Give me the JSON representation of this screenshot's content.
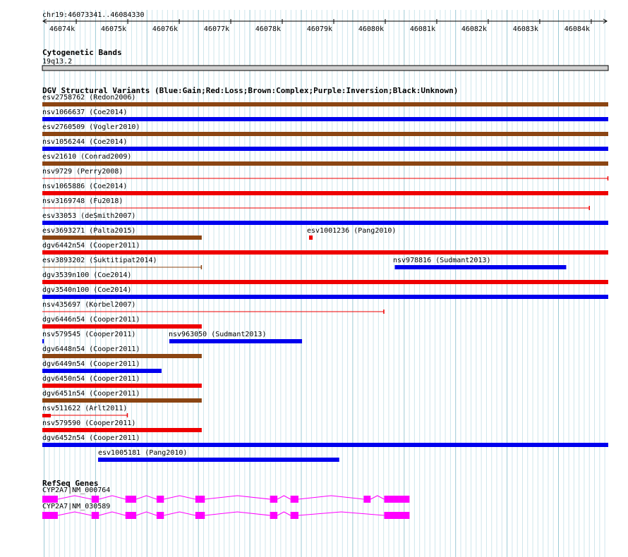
{
  "locus": "chr19:46073341..46084330",
  "ruler": {
    "start": 46073341,
    "end": 46084330,
    "ticks": [
      "46074k",
      "46075k",
      "46076k",
      "46077k",
      "46078k",
      "46079k",
      "46080k",
      "46081k",
      "46082k",
      "46083k",
      "46084k"
    ]
  },
  "tracks": {
    "cytoband": {
      "title": "Cytogenetic Bands",
      "band": "19q13.2"
    },
    "dgv": {
      "title": "DGV Structural Variants (Blue:Gain;Red:Loss;Brown:Complex;Purple:Inversion;Black:Unknown)",
      "colors": {
        "gain": "#0000ee",
        "loss": "#ee0000",
        "complex": "#8b4513"
      },
      "features": [
        {
          "label": "esv2758762 (Redon2006)",
          "type": "complex",
          "start": 46073341,
          "end": 46084330
        },
        {
          "label": "nsv1066637 (Coe2014)",
          "type": "gain",
          "start": 46073341,
          "end": 46084330
        },
        {
          "label": "esv2760509 (Vogler2010)",
          "type": "complex",
          "start": 46073341,
          "end": 46084330
        },
        {
          "label": "nsv1056244 (Coe2014)",
          "type": "gain",
          "start": 46073341,
          "end": 46084330
        },
        {
          "label": "esv21610 (Conrad2009)",
          "type": "complex",
          "start": 46073341,
          "end": 46084330
        },
        {
          "label": "nsv9729 (Perry2008)",
          "type": "loss",
          "start": 46073341,
          "end": 46084330,
          "style": "line"
        },
        {
          "label": "nsv1065886 (Coe2014)",
          "type": "loss",
          "start": 46073341,
          "end": 46084330
        },
        {
          "label": "nsv3169748 (Fu2018)",
          "type": "loss",
          "start": 46073341,
          "end": 46083970,
          "style": "line"
        },
        {
          "label": "esv33053 (deSmith2007)",
          "type": "gain",
          "start": 46073341,
          "end": 46084330
        },
        {
          "label": "esv3693271 (Palta2015)",
          "type": "complex",
          "start": 46073341,
          "end": 46076436
        },
        {
          "label": "esv1001236 (Pang2010)",
          "type": "loss",
          "start": 46078520,
          "end": 46078590
        },
        {
          "label": "dgv6442n54 (Cooper2011)",
          "type": "loss",
          "start": 46073341,
          "end": 46084330
        },
        {
          "label": "esv3893202 (Suktitipat2014)",
          "type": "complex",
          "start": 46073341,
          "end": 46076436,
          "style": "line"
        },
        {
          "label": "nsv978816 (Sudmant2013)",
          "type": "gain",
          "start": 46080185,
          "end": 46083514
        },
        {
          "label": "dgv3539n100 (Coe2014)",
          "type": "loss",
          "start": 46073341,
          "end": 46084330
        },
        {
          "label": "dgv3540n100 (Coe2014)",
          "type": "gain",
          "start": 46073341,
          "end": 46084330
        },
        {
          "label": "nsv435697 (Korbel2007)",
          "type": "loss",
          "start": 46073341,
          "end": 46079979,
          "style": "line"
        },
        {
          "label": "dgv6446n54 (Cooper2011)",
          "type": "loss",
          "start": 46073341,
          "end": 46076436
        },
        {
          "label": "nsv579545 (Cooper2011)",
          "type": "gain",
          "start": 46073341,
          "end": 46073370
        },
        {
          "label": "nsv963050 (Sudmant2013)",
          "type": "gain",
          "start": 46075807,
          "end": 46078384
        },
        {
          "label": "dgv6448n54 (Cooper2011)",
          "type": "complex",
          "start": 46073341,
          "end": 46076436
        },
        {
          "label": "dgv6449n54 (Cooper2011)",
          "type": "gain",
          "start": 46073341,
          "end": 46075656
        },
        {
          "label": "dgv6450n54 (Cooper2011)",
          "type": "loss",
          "start": 46073341,
          "end": 46076436
        },
        {
          "label": "dgv6451n54 (Cooper2011)",
          "type": "complex",
          "start": 46073341,
          "end": 46076436
        },
        {
          "label": "nsv511622 (Arlt2011)",
          "type": "loss",
          "start": 46073341,
          "end": 46074999,
          "style": "line"
        },
        {
          "label": "nsv579590 (Cooper2011)",
          "type": "loss",
          "start": 46073341,
          "end": 46076436
        },
        {
          "label": "dgv6452n54 (Cooper2011)",
          "type": "gain",
          "start": 46073341,
          "end": 46084330
        },
        {
          "label": "esv1005181 (Pang2010)",
          "type": "gain",
          "start": 46074423,
          "end": 46079106
        }
      ]
    },
    "refseq": {
      "title": "RefSeq Genes",
      "color": "#ff00ff",
      "genes": [
        {
          "label": "CYP2A7|NM_000764",
          "exons": [
            [
              46073341,
              46073641
            ],
            [
              46074296,
              46074441
            ],
            [
              46074954,
              46075164
            ],
            [
              46075559,
              46075702
            ],
            [
              46076312,
              46076496
            ],
            [
              46077761,
              46077906
            ],
            [
              46078159,
              46078314
            ],
            [
              46079581,
              46079716
            ],
            [
              46079979,
              46080472
            ]
          ]
        },
        {
          "label": "CYP2A7|NM_030589",
          "exons": [
            [
              46073341,
              46073641
            ],
            [
              46074296,
              46074441
            ],
            [
              46074954,
              46075164
            ],
            [
              46075559,
              46075702
            ],
            [
              46076312,
              46076496
            ],
            [
              46077761,
              46077906
            ],
            [
              46078159,
              46078314
            ],
            [
              46079979,
              46080472
            ]
          ]
        }
      ]
    }
  }
}
